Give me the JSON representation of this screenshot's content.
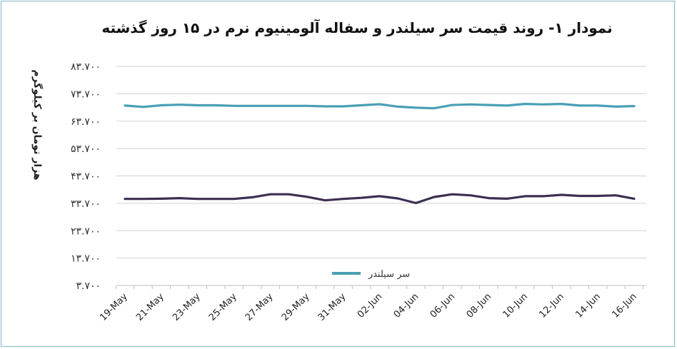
{
  "chart_data": {
    "type": "line",
    "title": "نمودار ۱- روند قیمت سر سیلندر و سفاله آلومینیوم نرم در ۱۵ روز گذشته",
    "ylabel": "هزار تومان بر کیلوگرم",
    "xlabel": "",
    "ylim": [
      3700,
      83700
    ],
    "yticks": [
      3700,
      13700,
      23700,
      33700,
      43700,
      53700,
      63700,
      73700,
      83700
    ],
    "ytick_labels": [
      "۳.۷۰۰",
      "۱۳.۷۰۰",
      "۲۳.۷۰۰",
      "۳۳.۷۰۰",
      "۴۳.۷۰۰",
      "۵۳.۷۰۰",
      "۶۳.۷۰۰",
      "۷۳.۷۰۰",
      "۸۳.۷۰۰"
    ],
    "x": [
      "19-May",
      "20-May",
      "21-May",
      "22-May",
      "23-May",
      "24-May",
      "25-May",
      "26-May",
      "27-May",
      "28-May",
      "29-May",
      "30-May",
      "31-May",
      "01-Jun",
      "02-Jun",
      "03-Jun",
      "04-Jun",
      "05-Jun",
      "06-Jun",
      "07-Jun",
      "08-Jun",
      "09-Jun",
      "10-Jun",
      "11-Jun",
      "12-Jun",
      "13-Jun",
      "14-Jun",
      "15-Jun",
      "16-Jun"
    ],
    "xtick_labels": [
      "19-May",
      "21-May",
      "23-May",
      "25-May",
      "27-May",
      "29-May",
      "31-May",
      "02-Jun",
      "04-Jun",
      "06-Jun",
      "08-Jun",
      "10-Jun",
      "12-Jun",
      "14-Jun",
      "16-Jun"
    ],
    "grid": true,
    "legend_position": "bottom",
    "series": [
      {
        "name": "سر سیلندر",
        "color": "#4a9fb5",
        "values": [
          69400,
          68900,
          69500,
          69700,
          69500,
          69500,
          69300,
          69300,
          69300,
          69300,
          69300,
          69100,
          69100,
          69500,
          69900,
          69000,
          68600,
          68400,
          69600,
          69800,
          69600,
          69400,
          70000,
          69800,
          70000,
          69400,
          69400,
          69000,
          69200
        ]
      },
      {
        "name": "",
        "color": "#3d2f52",
        "values": [
          35300,
          35300,
          35400,
          35600,
          35300,
          35300,
          35300,
          35900,
          37000,
          37000,
          36100,
          34800,
          35300,
          35700,
          36300,
          35500,
          33800,
          36000,
          37000,
          36600,
          35600,
          35400,
          36300,
          36300,
          36800,
          36400,
          36400,
          36600,
          35400
        ]
      }
    ]
  }
}
